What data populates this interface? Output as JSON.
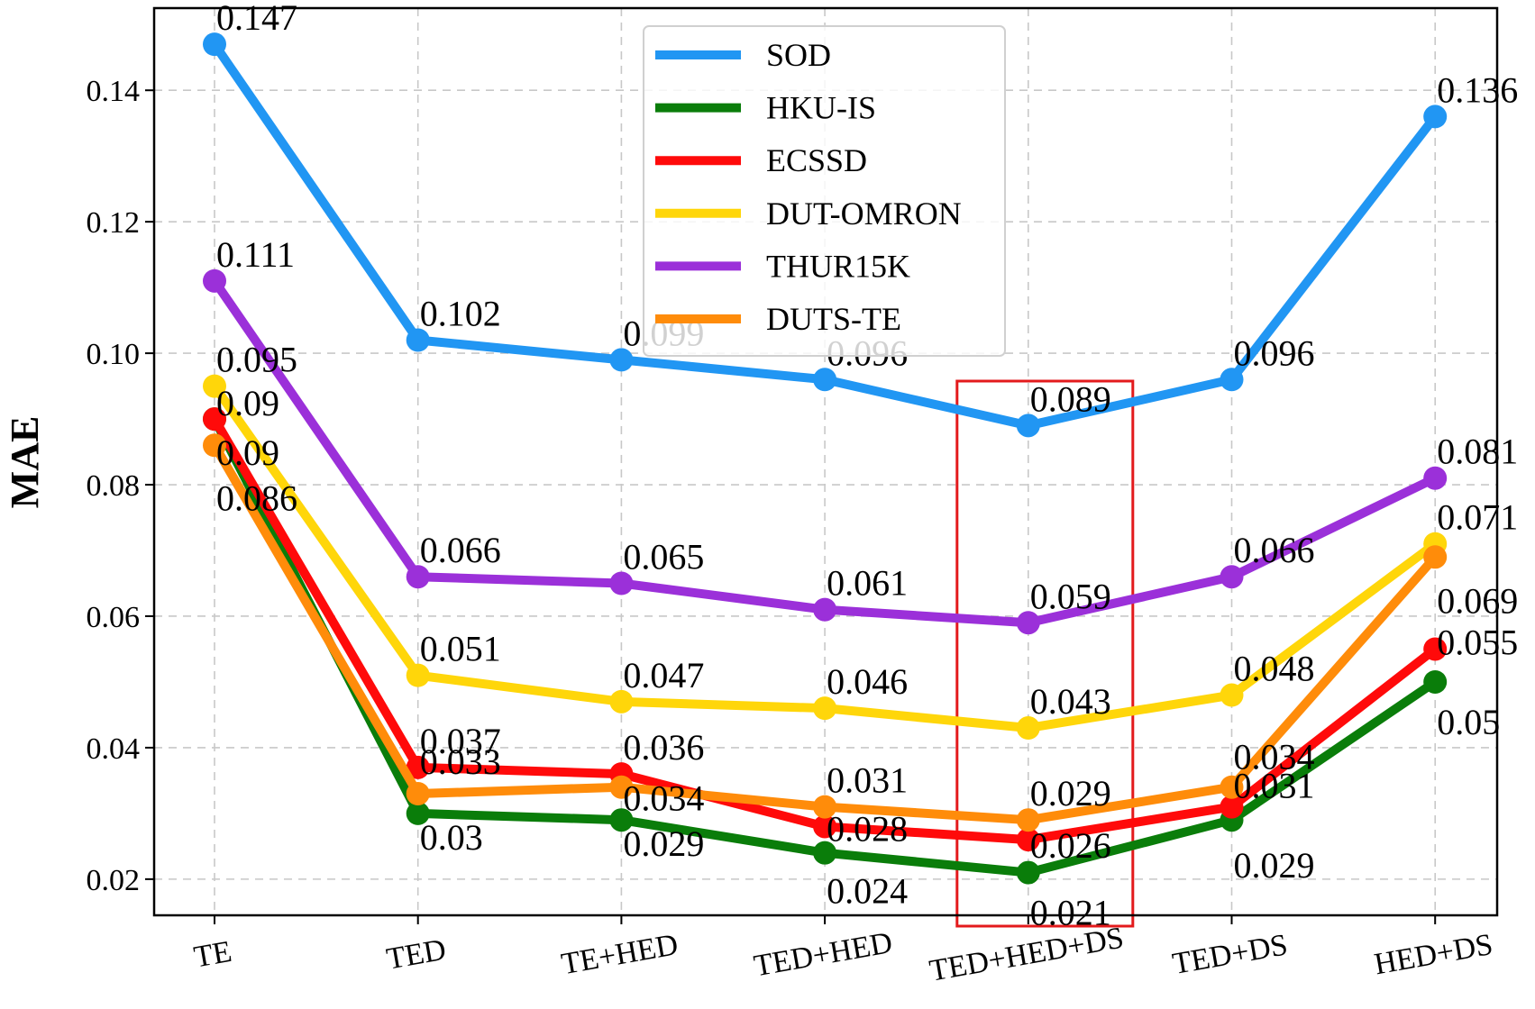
{
  "chart_data": {
    "type": "line",
    "title": "",
    "xlabel": "",
    "ylabel": "MAE",
    "ylim": [
      0.0145,
      0.1525
    ],
    "yticks": [
      0.02,
      0.04,
      0.06,
      0.08,
      0.1,
      0.12,
      0.14
    ],
    "ytick_labels": [
      "0.02",
      "0.04",
      "0.06",
      "0.08",
      "0.10",
      "0.12",
      "0.14"
    ],
    "categories": [
      "TE",
      "TED",
      "TE+HED",
      "TED+HED",
      "TED+HED+DS",
      "TED+DS",
      "HED+DS"
    ],
    "grid": true,
    "legend_position": "top-center",
    "highlight": {
      "category": "TED+HED+DS",
      "color": "#e31a1c"
    },
    "series": [
      {
        "name": "SOD",
        "color": "#2196f3",
        "values": [
          0.147,
          0.102,
          0.099,
          0.096,
          0.089,
          0.096,
          0.136
        ],
        "labels": [
          "0.147",
          "0.102",
          "0.099",
          "0.096",
          "0.089",
          "0.096",
          "0.136"
        ]
      },
      {
        "name": "HKU-IS",
        "color": "#0a7d0a",
        "values": [
          0.09,
          0.03,
          0.029,
          0.024,
          0.021,
          0.029,
          0.05
        ],
        "labels": [
          "0.09",
          "0.03",
          "0.029",
          "0.024",
          "0.021",
          "0.029",
          "0.05"
        ]
      },
      {
        "name": "ECSSD",
        "color": "#ff0a0a",
        "values": [
          0.09,
          0.037,
          0.036,
          0.028,
          0.026,
          0.031,
          0.055
        ],
        "labels": [
          "0.09",
          "0.037",
          "0.036",
          "0.028",
          "0.026",
          "0.031",
          "0.055"
        ]
      },
      {
        "name": "DUT-OMRON",
        "color": "#ffd60a",
        "values": [
          0.095,
          0.051,
          0.047,
          0.046,
          0.043,
          0.048,
          0.071
        ],
        "labels": [
          "0.095",
          "0.051",
          "0.047",
          "0.046",
          "0.043",
          "0.048",
          "0.071"
        ]
      },
      {
        "name": "THUR15K",
        "color": "#9b30d9",
        "values": [
          0.111,
          0.066,
          0.065,
          0.061,
          0.059,
          0.066,
          0.081
        ],
        "labels": [
          "0.111",
          "0.066",
          "0.065",
          "0.061",
          "0.059",
          "0.066",
          "0.081"
        ]
      },
      {
        "name": "DUTS-TE",
        "color": "#ff8c0a",
        "values": [
          0.086,
          0.033,
          0.034,
          0.031,
          0.029,
          0.034,
          0.069
        ],
        "labels": [
          "0.086",
          "0.033",
          "0.034",
          "0.031",
          "0.029",
          "0.034",
          "0.069"
        ]
      }
    ]
  }
}
